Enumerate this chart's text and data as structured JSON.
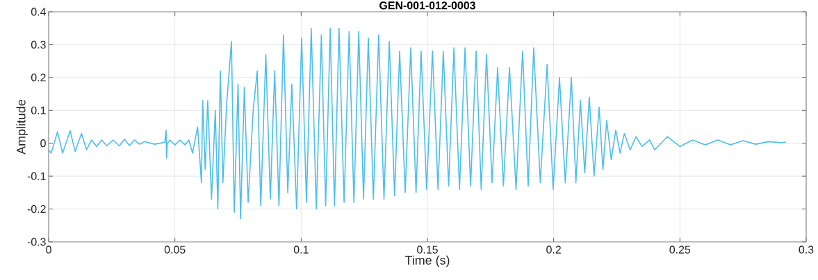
{
  "chart_data": {
    "type": "line",
    "title": "GEN-001-012-0003",
    "xlabel": "Time (s)",
    "ylabel": "Amplitude",
    "xlim": [
      0,
      0.3
    ],
    "ylim": [
      -0.3,
      0.4
    ],
    "xticks": [
      0,
      0.05,
      0.1,
      0.15,
      0.2,
      0.25,
      0.3
    ],
    "yticks": [
      -0.3,
      -0.2,
      -0.1,
      0,
      0.1,
      0.2,
      0.3,
      0.4
    ],
    "grid": true,
    "line_style": "solid",
    "series": [
      {
        "color": "#4dbeee",
        "x": [
          0,
          0.001,
          0.0035,
          0.0055,
          0.0085,
          0.0105,
          0.013,
          0.015,
          0.017,
          0.019,
          0.021,
          0.023,
          0.0255,
          0.028,
          0.03,
          0.032,
          0.034,
          0.036,
          0.038,
          0.042,
          0.046,
          0.0465,
          0.0467,
          0.047,
          0.048,
          0.05,
          0.052,
          0.054,
          0.0555,
          0.057,
          0.059,
          0.0605,
          0.061,
          0.062,
          0.063,
          0.0645,
          0.066,
          0.067,
          0.068,
          0.069,
          0.0705,
          0.0724,
          0.0735,
          0.075,
          0.076,
          0.0775,
          0.079,
          0.081,
          0.0826,
          0.084,
          0.086,
          0.0878,
          0.0895,
          0.0912,
          0.093,
          0.0947,
          0.0963,
          0.0982,
          0.1002,
          0.1021,
          0.104,
          0.106,
          0.108,
          0.1097,
          0.1115,
          0.1132,
          0.115,
          0.117,
          0.119,
          0.1209,
          0.1228,
          0.1247,
          0.1266,
          0.1286,
          0.1307,
          0.1328,
          0.1349,
          0.137,
          0.139,
          0.1412,
          0.1434,
          0.1455,
          0.1475,
          0.1497,
          0.152,
          0.1542,
          0.1563,
          0.1584,
          0.1605,
          0.1627,
          0.1649,
          0.1671,
          0.1693,
          0.1713,
          0.1734,
          0.1756,
          0.1778,
          0.1801,
          0.1825,
          0.1851,
          0.1877,
          0.1899,
          0.1921,
          0.1947,
          0.1974,
          0.1998,
          0.2023,
          0.2046,
          0.207,
          0.2088,
          0.2106,
          0.2123,
          0.2141,
          0.216,
          0.218,
          0.2195,
          0.221,
          0.2228,
          0.2246,
          0.2263,
          0.228,
          0.2303,
          0.2326,
          0.235,
          0.238,
          0.24,
          0.245,
          0.25,
          0.255,
          0.26,
          0.265,
          0.27,
          0.275,
          0.28,
          0.285,
          0.29,
          0.292
        ],
        "values": [
          -0.02,
          -0.03,
          0.035,
          -0.03,
          0.038,
          -0.025,
          0.03,
          -0.02,
          0.01,
          -0.01,
          0.01,
          -0.008,
          0.01,
          -0.008,
          0.012,
          -0.007,
          0.01,
          -0.003,
          0.005,
          -0.003,
          0.003,
          0.04,
          -0.045,
          0.0,
          0.01,
          -0.005,
          0.01,
          -0.005,
          0.01,
          -0.03,
          0.05,
          -0.12,
          0.13,
          -0.08,
          0.13,
          -0.17,
          0.1,
          -0.2,
          0.22,
          -0.12,
          0.12,
          0.31,
          -0.21,
          0.18,
          -0.23,
          0.17,
          -0.18,
          0.1,
          0.22,
          -0.19,
          0.27,
          -0.17,
          0.22,
          -0.19,
          0.33,
          -0.15,
          0.18,
          -0.2,
          0.32,
          -0.18,
          0.35,
          -0.2,
          0.33,
          -0.19,
          0.35,
          -0.19,
          0.35,
          -0.18,
          0.34,
          -0.18,
          0.34,
          -0.17,
          0.32,
          -0.17,
          0.33,
          -0.17,
          0.31,
          -0.16,
          0.28,
          -0.15,
          0.29,
          -0.15,
          0.28,
          -0.14,
          0.28,
          -0.14,
          0.28,
          -0.13,
          0.29,
          -0.14,
          0.29,
          -0.13,
          0.28,
          -0.14,
          0.27,
          -0.12,
          0.23,
          -0.13,
          0.23,
          -0.14,
          0.28,
          -0.13,
          0.29,
          -0.12,
          0.24,
          -0.14,
          0.2,
          -0.12,
          0.2,
          -0.12,
          0.13,
          -0.09,
          0.14,
          -0.1,
          0.11,
          -0.08,
          0.07,
          -0.05,
          0.04,
          -0.03,
          0.03,
          -0.02,
          0.02,
          -0.01,
          0.01,
          -0.02,
          0.02,
          -0.01,
          0.01,
          -0.005,
          0.01,
          -0.005,
          0.008,
          -0.003,
          0.005,
          0.002,
          0.003
        ]
      }
    ]
  }
}
